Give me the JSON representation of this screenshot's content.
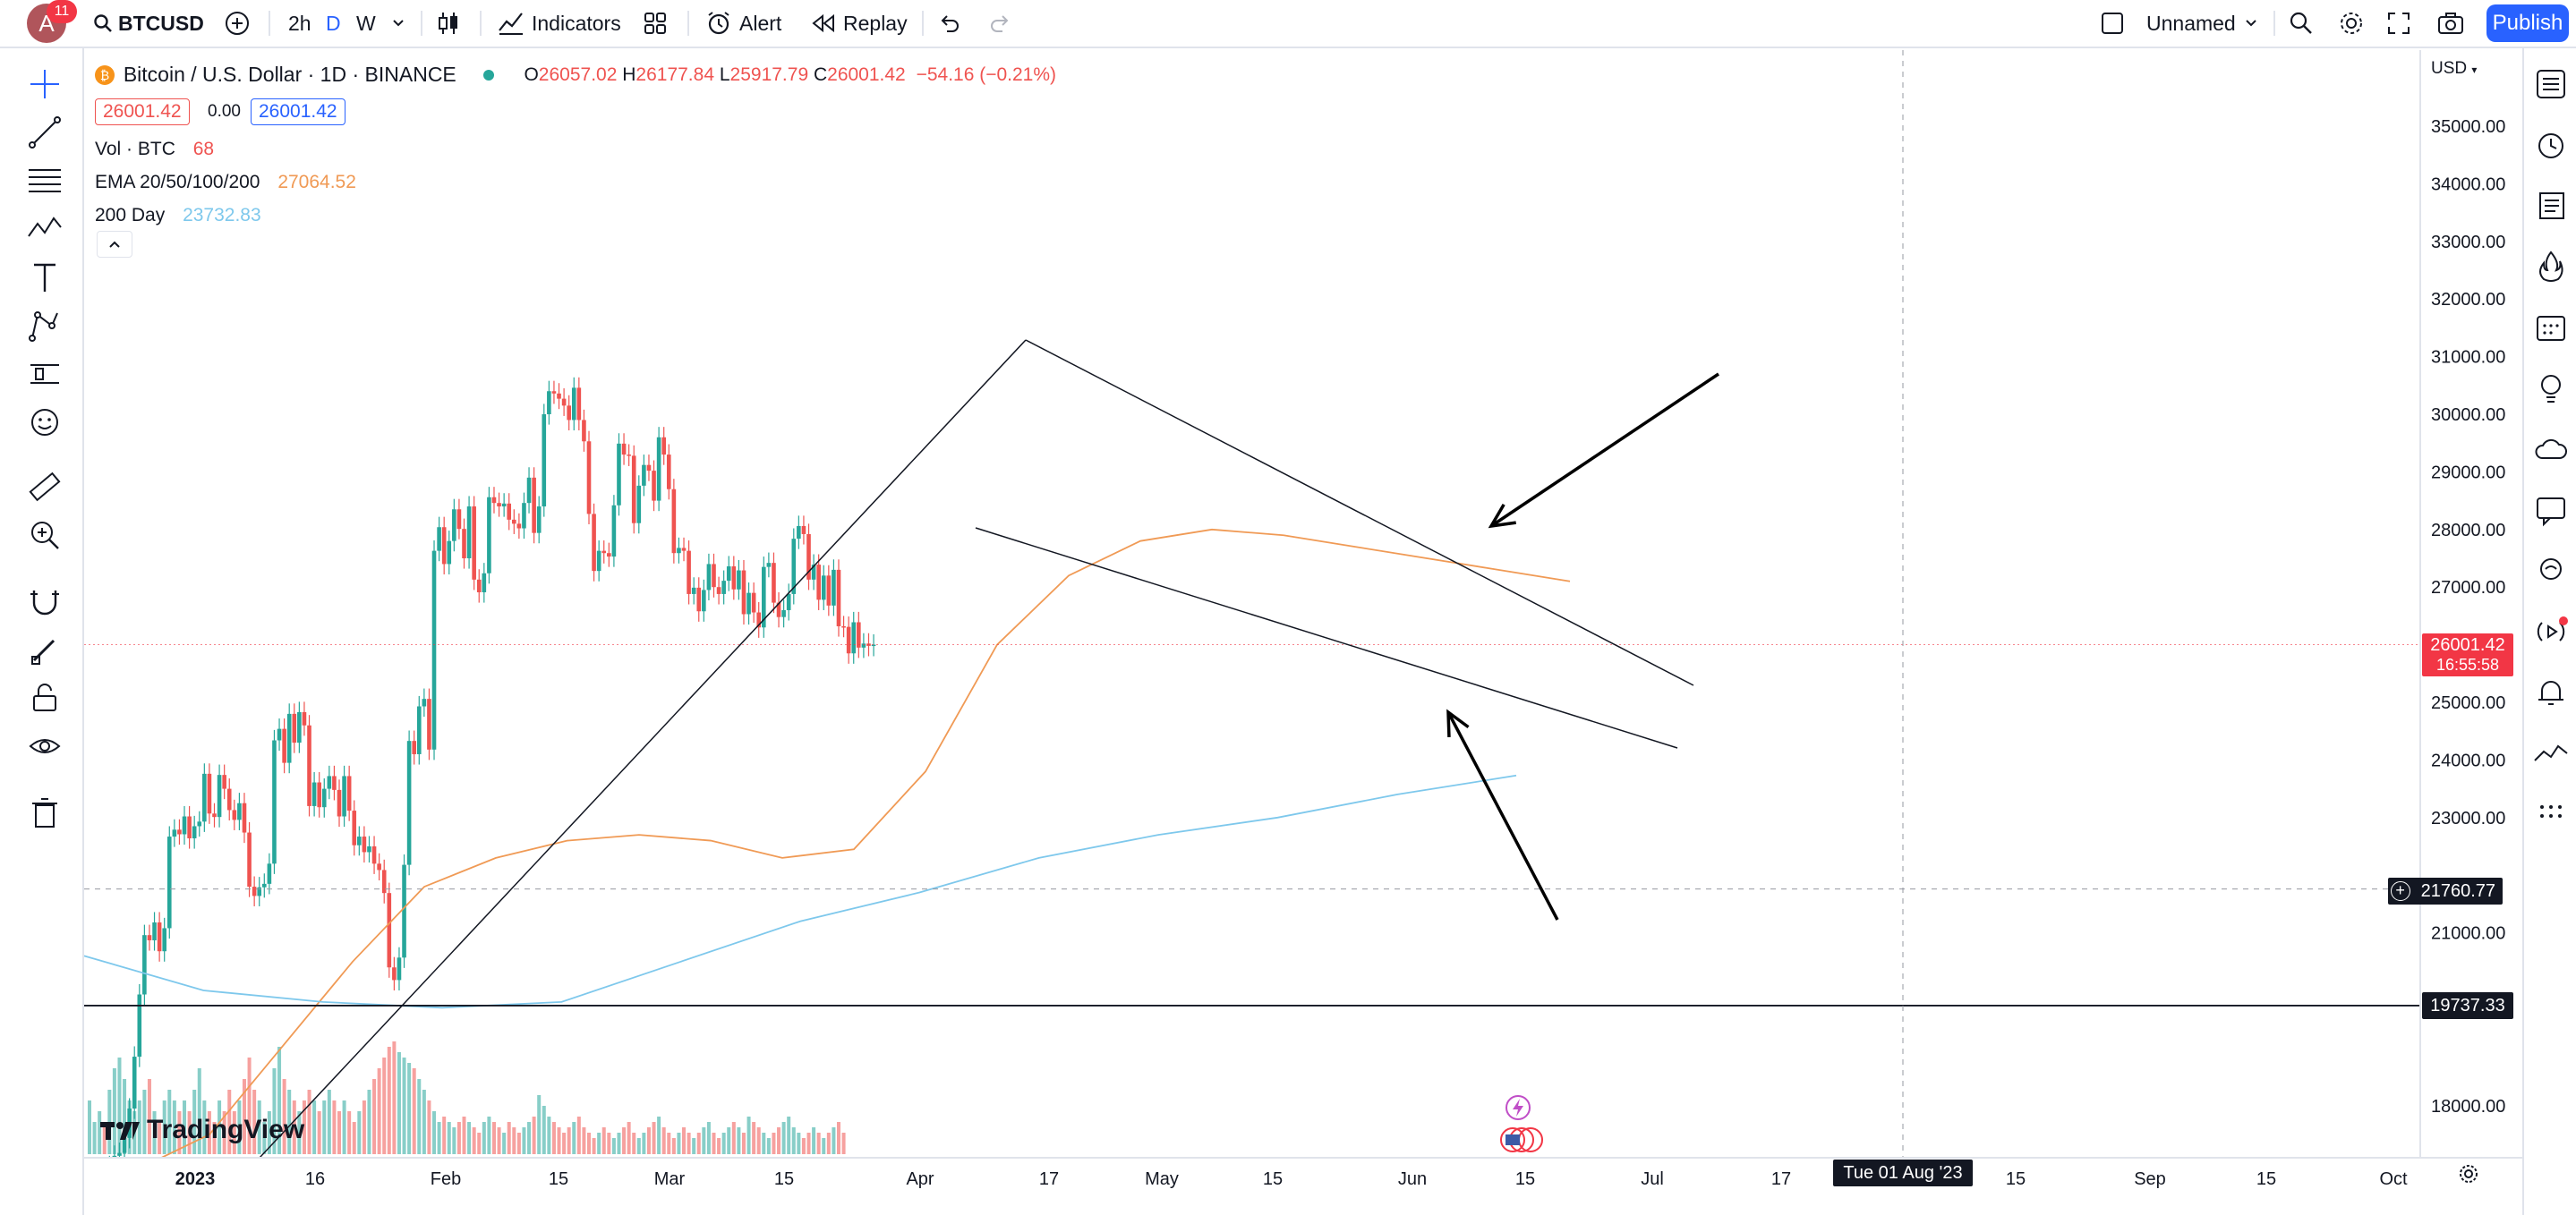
{
  "topbar": {
    "avatar_letter": "A",
    "notification_count": "11",
    "symbol": "BTCUSD",
    "intervals": [
      "2h",
      "D",
      "W"
    ],
    "indicators_label": "Indicators",
    "alert_label": "Alert",
    "replay_label": "Replay",
    "layout_name": "Unnamed",
    "publish_label": "Publish"
  },
  "legend": {
    "title": "Bitcoin / U.S. Dollar · 1D · BINANCE",
    "open_label": "O",
    "open": "26057.02",
    "high_label": "H",
    "high": "26177.84",
    "low_label": "L",
    "low": "25917.79",
    "close_label": "C",
    "close": "26001.42",
    "change": "−54.16 (−0.21%)",
    "bid": "26001.42",
    "spread": "0.00",
    "ask": "26001.42",
    "vol_label": "Vol · BTC",
    "vol_value": "68",
    "ema_label": "EMA 20/50/100/200",
    "ema_value": "27064.52",
    "ma_label": "200 Day",
    "ma_value": "23732.83"
  },
  "colors": {
    "up": "#26a69a",
    "down": "#ef5350",
    "ema": "#f09a55",
    "ma200": "#7ec8ec",
    "accent": "#2962ff"
  },
  "tags": {
    "last_price": "26001.42",
    "countdown": "16:55:58",
    "crosshair_price": "21760.77",
    "hline_price": "19737.33",
    "crosshair_date": "Tue 01 Aug '23"
  },
  "chart_data": {
    "type": "candlestick",
    "currency": "USD",
    "y_range": [
      17400,
      36000
    ],
    "y_ticks": [
      "35000.00",
      "34000.00",
      "33000.00",
      "32000.00",
      "31000.00",
      "30000.00",
      "29000.00",
      "28000.00",
      "27000.00",
      "25000.00",
      "24000.00",
      "23000.00",
      "21000.00",
      "18000.00"
    ],
    "x_ticks": [
      "2023",
      "16",
      "Feb",
      "15",
      "Mar",
      "15",
      "Apr",
      "17",
      "May",
      "15",
      "Jun",
      "15",
      "Jul",
      "17",
      "15",
      "Sep",
      "15",
      "Oct"
    ],
    "trendlines": [
      {
        "from": [
          "Jan 16",
          "16850"
        ],
        "to": [
          "Apr 14",
          "31300"
        ]
      },
      {
        "from": [
          "Apr 14",
          "31300"
        ],
        "to": [
          "Jul 14",
          "25300"
        ]
      },
      {
        "from": [
          "Apr 5",
          "28000"
        ],
        "to": [
          "Jul 13",
          "24200"
        ]
      }
    ],
    "horizontal_line": 19737.33,
    "closes": [
      16620,
      16680,
      16850,
      16840,
      16950,
      17130,
      17180,
      17440,
      17950,
      18850,
      19930,
      20960,
      20870,
      21180,
      20680,
      21080,
      22670,
      22790,
      22710,
      23020,
      22640,
      22850,
      22930,
      23760,
      23070,
      23010,
      23740,
      23500,
      23130,
      22960,
      23250,
      22740,
      21800,
      21640,
      21790,
      21850,
      22200,
      24340,
      24540,
      23950,
      24800,
      24300,
      24830,
      24600,
      23200,
      23610,
      23180,
      23500,
      23720,
      23480,
      23020,
      23720,
      23120,
      22520,
      22670,
      22400,
      22500,
      22200,
      22090,
      21690,
      20400,
      20180,
      20570,
      22180,
      24330,
      24100,
      24930,
      25060,
      24180,
      27630,
      28040,
      27400,
      27800,
      28350,
      28010,
      27500,
      28400,
      27130,
      26910,
      27240,
      28560,
      28460,
      28400,
      28450,
      28170,
      28100,
      28020,
      28460,
      28900,
      27940,
      28400,
      30000,
      30400,
      30360,
      30270,
      30150,
      29900,
      30460,
      29900,
      29530,
      28270,
      27280,
      27630,
      27590,
      27530,
      28420,
      29490,
      29300,
      29280,
      28110,
      28760,
      29120,
      29020,
      28500,
      29600,
      29300,
      28700,
      27590,
      27680,
      27630,
      26880,
      26990,
      26580,
      26950,
      27400,
      27000,
      26880,
      27110,
      27360,
      26960,
      27290,
      26530,
      26900,
      26560,
      26300,
      27350,
      27420,
      26730,
      26480,
      26600,
      26880,
      27840,
      28060,
      27920,
      27130,
      27390,
      26780,
      27200,
      26680,
      27300,
      26320,
      26310,
      25850,
      26390,
      25950,
      26020,
      25980,
      26001
    ],
    "ema_points": [
      16900,
      17500,
      19000,
      20500,
      21800,
      22300,
      22600,
      22700,
      22600,
      22300,
      22450,
      23800,
      26000,
      27200,
      27800,
      28000,
      27900,
      27700,
      27500,
      27300,
      27100
    ],
    "ma200_points": [
      20600,
      20000,
      19800,
      19700,
      19800,
      20500,
      21200,
      21700,
      22300,
      22700,
      23000,
      23400,
      23730
    ],
    "volume_relative": [
      0.5,
      0.3,
      0.4,
      0.3,
      0.6,
      0.8,
      0.9,
      0.7,
      0.5,
      0.4,
      0.5,
      0.6,
      0.7,
      0.4,
      0.3,
      0.5,
      0.6,
      0.5,
      0.4,
      0.5,
      0.4,
      0.6,
      0.8,
      0.5,
      0.4,
      0.3,
      0.5,
      0.4,
      0.6,
      0.4,
      0.5,
      0.7,
      0.9,
      0.6,
      0.5,
      0.3,
      0.4,
      0.8,
      1.0,
      0.7,
      0.6,
      0.5,
      0.4,
      0.5,
      0.6,
      0.5,
      0.4,
      0.5,
      0.6,
      0.5,
      0.4,
      0.5,
      0.4,
      0.3,
      0.4,
      0.5,
      0.6,
      0.7,
      0.8,
      0.9,
      1.0,
      1.05,
      0.95,
      0.9,
      0.85,
      0.8,
      0.7,
      0.6,
      0.5,
      0.4,
      0.3,
      0.35,
      0.3,
      0.25,
      0.3,
      0.35,
      0.3,
      0.25,
      0.2,
      0.3,
      0.35,
      0.3,
      0.25,
      0.2,
      0.3,
      0.25,
      0.2,
      0.25,
      0.3,
      0.35,
      0.55,
      0.45,
      0.35,
      0.3,
      0.25,
      0.2,
      0.25,
      0.3,
      0.35,
      0.25,
      0.2,
      0.15,
      0.2,
      0.25,
      0.2,
      0.15,
      0.2,
      0.25,
      0.3,
      0.2,
      0.15,
      0.2,
      0.25,
      0.3,
      0.35,
      0.25,
      0.2,
      0.15,
      0.2,
      0.25,
      0.2,
      0.15,
      0.2,
      0.25,
      0.3,
      0.2,
      0.15,
      0.2,
      0.25,
      0.3,
      0.25,
      0.2,
      0.35,
      0.3,
      0.25,
      0.2,
      0.15,
      0.2,
      0.25,
      0.3,
      0.35,
      0.25,
      0.2,
      0.15,
      0.2,
      0.25,
      0.2,
      0.15,
      0.2,
      0.25,
      0.3,
      0.2
    ]
  },
  "watermark": "TradingView"
}
